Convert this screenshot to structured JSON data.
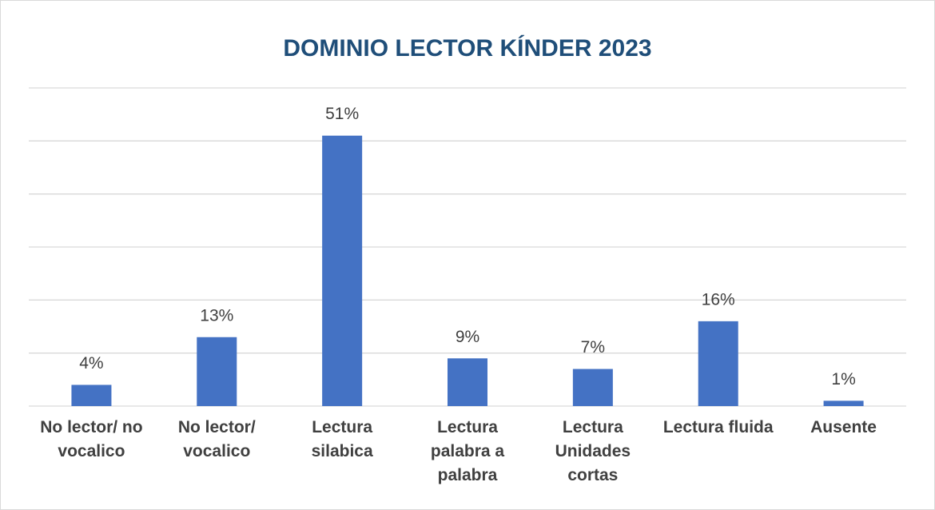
{
  "chart_data": {
    "type": "bar",
    "title": "DOMINIO LECTOR KÍNDER 2023",
    "categories": [
      "No lector/ no vocalico",
      "No lector/ vocalico",
      "Lectura silabica",
      "Lectura palabra a palabra",
      "Lectura Unidades cortas",
      "Lectura fluida",
      "Ausente"
    ],
    "values": [
      4,
      13,
      51,
      9,
      7,
      16,
      1
    ],
    "value_labels": [
      "4%",
      "13%",
      "51%",
      "9%",
      "7%",
      "16%",
      "1%"
    ],
    "color": "#4472c4",
    "ylim": [
      0,
      60
    ],
    "yticks": [
      0,
      10,
      20,
      30,
      40,
      50,
      60
    ],
    "grid": true
  }
}
